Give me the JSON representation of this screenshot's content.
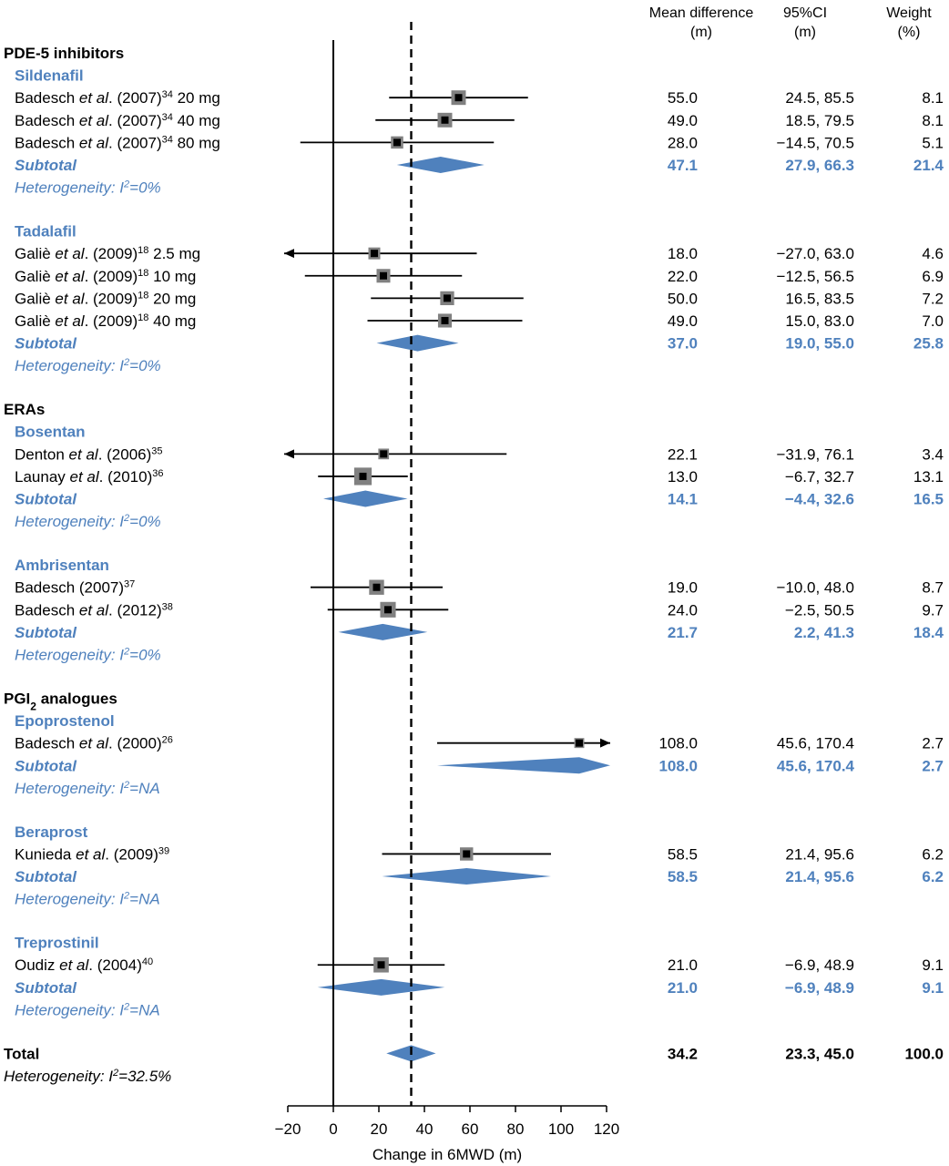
{
  "chart_data": {
    "type": "forest",
    "xlabel": "Change in 6MWD (m)",
    "xlim": [
      -20,
      120
    ],
    "xticks": [
      -20,
      0,
      20,
      40,
      60,
      80,
      100,
      120
    ],
    "pooled_effect": 34.2,
    "colors": {
      "subgroup": "#4f81bd",
      "study": "#000000",
      "marker_box": "#808080"
    },
    "columns": [
      {
        "title": "Mean difference",
        "unit": "(m)"
      },
      {
        "title": "95%CI",
        "unit": "(m)"
      },
      {
        "title": "Weight",
        "unit": "(%)"
      }
    ],
    "rows": [
      {
        "kind": "category",
        "label": "PDE-5 inhibitors"
      },
      {
        "kind": "group",
        "label": "Sildenafil"
      },
      {
        "kind": "study",
        "author": "Badesch",
        "etal": true,
        "year": "(2007)",
        "ref": "34",
        "detail": "20 mg",
        "md": 55.0,
        "lo": 24.5,
        "hi": 85.5,
        "md_text": "55.0",
        "ci_text": "24.5, 85.5",
        "weight": "8.1"
      },
      {
        "kind": "study",
        "author": "Badesch",
        "etal": true,
        "year": "(2007)",
        "ref": "34",
        "detail": "40 mg",
        "md": 49.0,
        "lo": 18.5,
        "hi": 79.5,
        "md_text": "49.0",
        "ci_text": "18.5, 79.5",
        "weight": "8.1"
      },
      {
        "kind": "study",
        "author": "Badesch",
        "etal": true,
        "year": "(2007)",
        "ref": "34",
        "detail": "80 mg",
        "md": 28.0,
        "lo": -14.5,
        "hi": 70.5,
        "md_text": "28.0",
        "ci_text": "−14.5, 70.5",
        "weight": "5.1"
      },
      {
        "kind": "subtotal",
        "label": "Subtotal",
        "md": 47.1,
        "lo": 27.9,
        "hi": 66.3,
        "md_text": "47.1",
        "ci_text": "27.9, 66.3",
        "weight": "21.4"
      },
      {
        "kind": "het",
        "prefix": "Heterogeneity: ",
        "i": "I",
        "sup": "2",
        "suffix": "=0%"
      },
      {
        "kind": "gap"
      },
      {
        "kind": "group",
        "label": "Tadalafil"
      },
      {
        "kind": "study",
        "author": "Galiè",
        "etal": true,
        "year": "(2009)",
        "ref": "18",
        "detail": "2.5 mg",
        "md": 18.0,
        "lo": -27.0,
        "hi": 63.0,
        "md_text": "18.0",
        "ci_text": "−27.0, 63.0",
        "weight": "4.6"
      },
      {
        "kind": "study",
        "author": "Galiè",
        "etal": true,
        "year": "(2009)",
        "ref": "18",
        "detail": "10 mg",
        "md": 22.0,
        "lo": -12.5,
        "hi": 56.5,
        "md_text": "22.0",
        "ci_text": "−12.5, 56.5",
        "weight": "6.9"
      },
      {
        "kind": "study",
        "author": "Galiè",
        "etal": true,
        "year": "(2009)",
        "ref": "18",
        "detail": "20 mg",
        "md": 50.0,
        "lo": 16.5,
        "hi": 83.5,
        "md_text": "50.0",
        "ci_text": "16.5, 83.5",
        "weight": "7.2"
      },
      {
        "kind": "study",
        "author": "Galiè",
        "etal": true,
        "year": "(2009)",
        "ref": "18",
        "detail": "40 mg",
        "md": 49.0,
        "lo": 15.0,
        "hi": 83.0,
        "md_text": "49.0",
        "ci_text": "15.0, 83.0",
        "weight": "7.0"
      },
      {
        "kind": "subtotal",
        "label": "Subtotal",
        "md": 37.0,
        "lo": 19.0,
        "hi": 55.0,
        "md_text": "37.0",
        "ci_text": "19.0, 55.0",
        "weight": "25.8"
      },
      {
        "kind": "het",
        "prefix": "Heterogeneity: ",
        "i": "I",
        "sup": "2",
        "suffix": "=0%"
      },
      {
        "kind": "gap"
      },
      {
        "kind": "category",
        "label": "ERAs"
      },
      {
        "kind": "group",
        "label": "Bosentan"
      },
      {
        "kind": "study",
        "author": "Denton",
        "etal": true,
        "year": "(2006)",
        "ref": "35",
        "detail": "",
        "md": 22.1,
        "lo": -31.9,
        "hi": 76.1,
        "md_text": "22.1",
        "ci_text": "−31.9, 76.1",
        "weight": "3.4"
      },
      {
        "kind": "study",
        "author": "Launay",
        "etal": true,
        "year": "(2010)",
        "ref": "36",
        "detail": "",
        "md": 13.0,
        "lo": -6.7,
        "hi": 32.7,
        "md_text": "13.0",
        "ci_text": "−6.7, 32.7",
        "weight": "13.1"
      },
      {
        "kind": "subtotal",
        "label": "Subtotal",
        "md": 14.1,
        "lo": -4.4,
        "hi": 32.6,
        "md_text": "14.1",
        "ci_text": "−4.4, 32.6",
        "weight": "16.5"
      },
      {
        "kind": "het",
        "prefix": "Heterogeneity: ",
        "i": "I",
        "sup": "2",
        "suffix": "=0%"
      },
      {
        "kind": "gap"
      },
      {
        "kind": "group",
        "label": "Ambrisentan"
      },
      {
        "kind": "study",
        "author": "Badesch",
        "etal": false,
        "year": "(2007)",
        "ref": "37",
        "detail": "",
        "md": 19.0,
        "lo": -10.0,
        "hi": 48.0,
        "md_text": "19.0",
        "ci_text": "−10.0, 48.0",
        "weight": "8.7"
      },
      {
        "kind": "study",
        "author": "Badesch",
        "etal": true,
        "year": "(2012)",
        "ref": "38",
        "detail": "",
        "md": 24.0,
        "lo": -2.5,
        "hi": 50.5,
        "md_text": "24.0",
        "ci_text": "−2.5, 50.5",
        "weight": "9.7"
      },
      {
        "kind": "subtotal",
        "label": "Subtotal",
        "md": 21.7,
        "lo": 2.2,
        "hi": 41.3,
        "md_text": "21.7",
        "ci_text": "2.2, 41.3",
        "weight": "18.4"
      },
      {
        "kind": "het",
        "prefix": "Heterogeneity: ",
        "i": "I",
        "sup": "2",
        "suffix": "=0%"
      },
      {
        "kind": "gap"
      },
      {
        "kind": "category",
        "label": "PGI",
        "sub": "2",
        "label2": " analogues"
      },
      {
        "kind": "group",
        "label": "Epoprostenol"
      },
      {
        "kind": "study",
        "author": "Badesch",
        "etal": true,
        "year": "(2000)",
        "ref": "26",
        "detail": "",
        "md": 108.0,
        "lo": 45.6,
        "hi": 170.4,
        "md_text": "108.0",
        "ci_text": "45.6, 170.4",
        "weight": "2.7"
      },
      {
        "kind": "subtotal",
        "label": "Subtotal",
        "md": 108.0,
        "lo": 45.6,
        "hi": 170.4,
        "md_text": "108.0",
        "ci_text": "45.6, 170.4",
        "weight": "2.7"
      },
      {
        "kind": "het",
        "prefix": "Heterogeneity: ",
        "i": "I",
        "sup": "2",
        "suffix": "=NA"
      },
      {
        "kind": "gap"
      },
      {
        "kind": "group",
        "label": "Beraprost"
      },
      {
        "kind": "study",
        "author": "Kunieda",
        "etal": true,
        "year": "(2009)",
        "ref": "39",
        "detail": "",
        "md": 58.5,
        "lo": 21.4,
        "hi": 95.6,
        "md_text": "58.5",
        "ci_text": "21.4, 95.6",
        "weight": "6.2"
      },
      {
        "kind": "subtotal",
        "label": "Subtotal",
        "md": 58.5,
        "lo": 21.4,
        "hi": 95.6,
        "md_text": "58.5",
        "ci_text": "21.4, 95.6",
        "weight": "6.2"
      },
      {
        "kind": "het",
        "prefix": "Heterogeneity: ",
        "i": "I",
        "sup": "2",
        "suffix": "=NA"
      },
      {
        "kind": "gap"
      },
      {
        "kind": "group",
        "label": "Treprostinil"
      },
      {
        "kind": "study",
        "author": "Oudiz",
        "etal": true,
        "year": "(2004)",
        "ref": "40",
        "detail": "",
        "md": 21.0,
        "lo": -6.9,
        "hi": 48.9,
        "md_text": "21.0",
        "ci_text": "−6.9, 48.9",
        "weight": "9.1"
      },
      {
        "kind": "subtotal",
        "label": "Subtotal",
        "md": 21.0,
        "lo": -6.9,
        "hi": 48.9,
        "md_text": "21.0",
        "ci_text": "−6.9, 48.9",
        "weight": "9.1"
      },
      {
        "kind": "het",
        "prefix": "Heterogeneity: ",
        "i": "I",
        "sup": "2",
        "suffix": "=NA"
      },
      {
        "kind": "gap"
      },
      {
        "kind": "total",
        "label": "Total",
        "md": 34.2,
        "lo": 23.3,
        "hi": 45.0,
        "md_text": "34.2",
        "ci_text": "23.3, 45.0",
        "weight": "100.0"
      },
      {
        "kind": "het_total",
        "prefix": "Heterogeneity: ",
        "i": "I",
        "sup": "2",
        "suffix": "=32.5%"
      }
    ]
  }
}
